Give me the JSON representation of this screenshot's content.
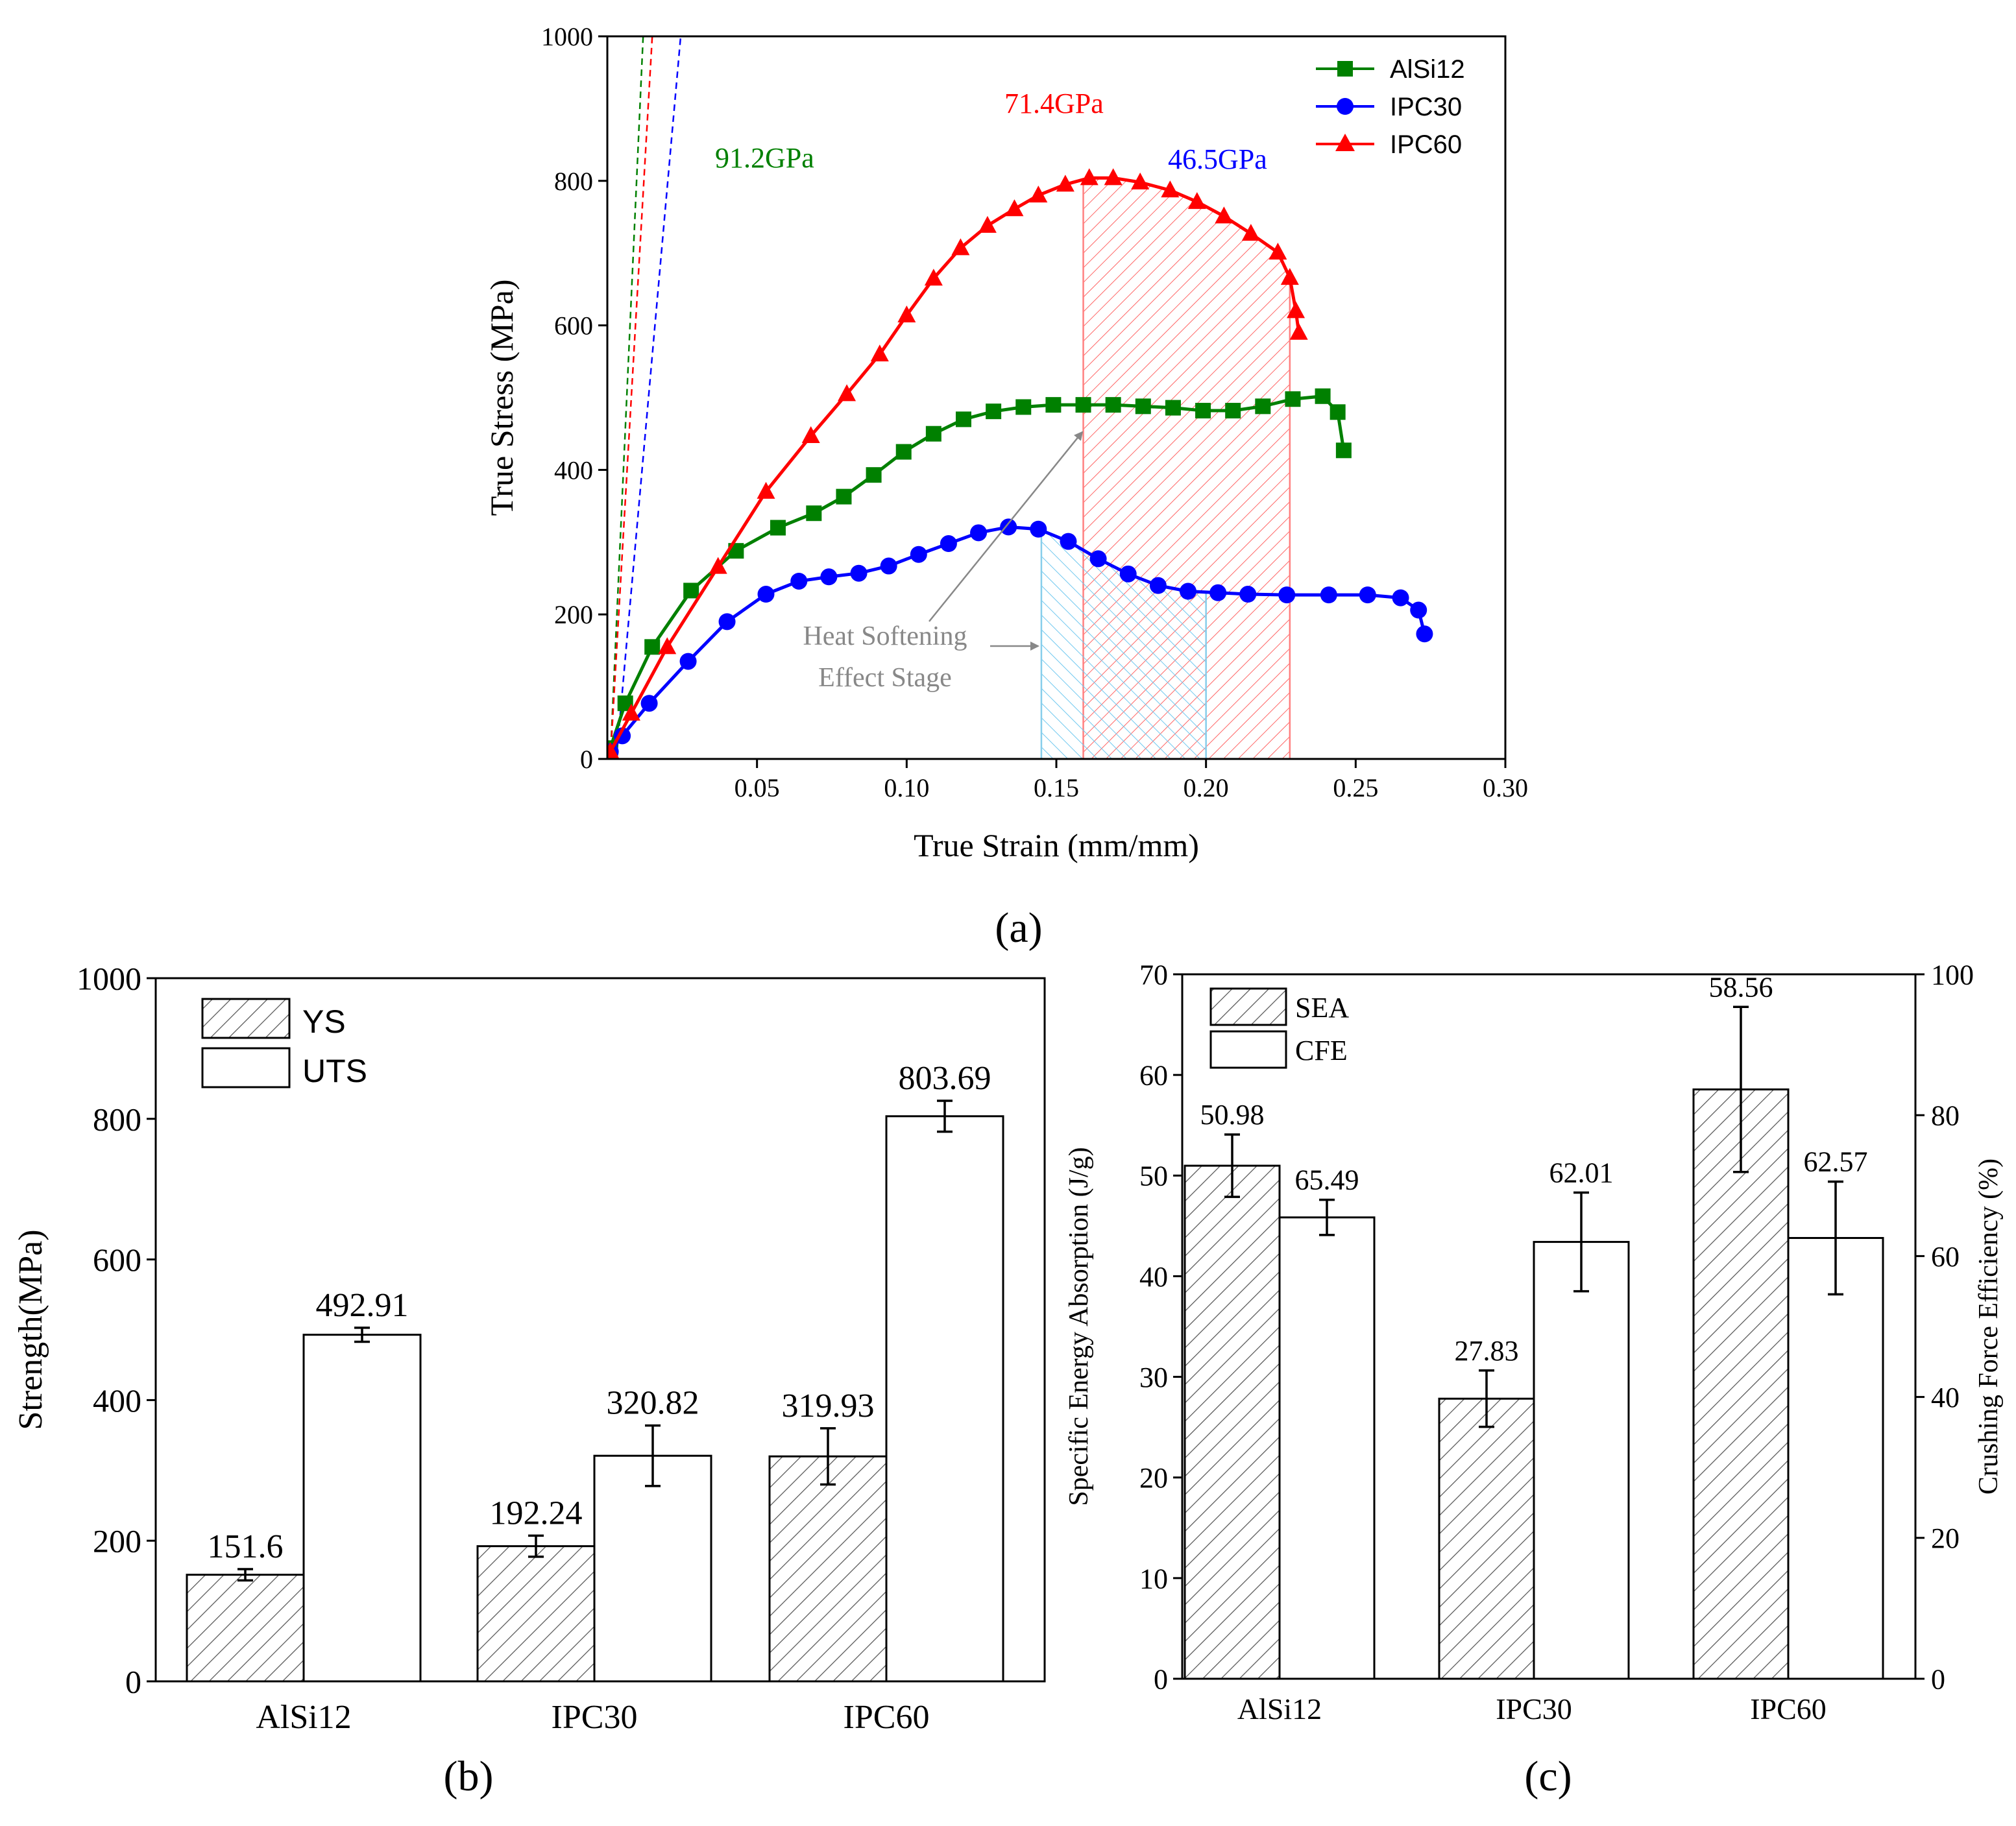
{
  "panel_labels": {
    "a": "(a)",
    "b": "(b)",
    "c": "(c)"
  },
  "chart_data": [
    {
      "id": "a",
      "type": "line",
      "xlabel": "True Strain (mm/mm)",
      "ylabel": "True Stress (MPa)",
      "xlim": [
        0,
        0.3
      ],
      "ylim": [
        0,
        1000
      ],
      "xticks": [
        0.05,
        0.1,
        0.15,
        0.2,
        0.25,
        0.3
      ],
      "xtick_labels": [
        "0.05",
        "0.10",
        "0.15",
        "0.20",
        "0.25",
        "0.30"
      ],
      "yticks": [
        0,
        200,
        400,
        600,
        800,
        1000
      ],
      "ytick_labels": [
        "0",
        "200",
        "400",
        "600",
        "800",
        "1000"
      ],
      "legend_position": "top-right",
      "series": [
        {
          "name": "AlSi12",
          "color": "#008000",
          "marker": "square",
          "x": [
            0.001,
            0.006,
            0.015,
            0.028,
            0.043,
            0.057,
            0.069,
            0.079,
            0.089,
            0.099,
            0.109,
            0.119,
            0.129,
            0.139,
            0.149,
            0.159,
            0.169,
            0.179,
            0.189,
            0.199,
            0.209,
            0.219,
            0.229,
            0.239,
            0.244,
            0.246
          ],
          "y": [
            15,
            77,
            155,
            233,
            288,
            320,
            340,
            363,
            393,
            425,
            450,
            470,
            481,
            487,
            490,
            490,
            490,
            488,
            486,
            482,
            482,
            488,
            498,
            502,
            480,
            427
          ]
        },
        {
          "name": "IPC30",
          "color": "#0000ff",
          "marker": "circle",
          "x": [
            0.001,
            0.005,
            0.014,
            0.027,
            0.04,
            0.053,
            0.064,
            0.074,
            0.084,
            0.094,
            0.104,
            0.114,
            0.124,
            0.134,
            0.144,
            0.154,
            0.164,
            0.174,
            0.184,
            0.194,
            0.204,
            0.214,
            0.227,
            0.241,
            0.254,
            0.265,
            0.271,
            0.273
          ],
          "y": [
            10,
            32,
            77,
            135,
            190,
            228,
            246,
            252,
            257,
            267,
            283,
            298,
            313,
            321,
            318,
            301,
            277,
            256,
            240,
            232,
            230,
            228,
            227,
            227,
            227,
            223,
            206,
            173
          ]
        },
        {
          "name": "IPC60",
          "color": "#ff0000",
          "marker": "triangle",
          "x": [
            0.001,
            0.008,
            0.02,
            0.037,
            0.053,
            0.068,
            0.08,
            0.091,
            0.1,
            0.109,
            0.118,
            0.127,
            0.136,
            0.144,
            0.153,
            0.161,
            0.169,
            0.178,
            0.188,
            0.197,
            0.206,
            0.215,
            0.224,
            0.228,
            0.23,
            0.231
          ],
          "y": [
            10,
            63,
            155,
            266,
            370,
            447,
            505,
            560,
            614,
            665,
            707,
            738,
            761,
            780,
            795,
            804,
            804,
            798,
            787,
            771,
            751,
            727,
            701,
            666,
            620,
            590
          ]
        }
      ],
      "moduli": [
        {
          "label": "91.2GPa",
          "color": "#008000"
        },
        {
          "label": "71.4GPa",
          "color": "#ff0000"
        },
        {
          "label": "46.5GPa",
          "color": "#0000ff"
        }
      ],
      "annotation": {
        "line1": "Heat Softening",
        "line2": "Effect Stage"
      },
      "shaded_regions": [
        {
          "series": "IPC60",
          "color": "#ff8080",
          "x_start": 0.159,
          "x_end": 0.228
        },
        {
          "series": "IPC30",
          "color": "#87ceeb",
          "x_start": 0.145,
          "x_end": 0.2
        }
      ]
    },
    {
      "id": "b",
      "type": "bar",
      "categories": [
        "AlSi12",
        "IPC30",
        "IPC60"
      ],
      "ylabel": "Strength(MPa)",
      "ylim": [
        0,
        1000
      ],
      "yticks": [
        0,
        200,
        400,
        600,
        800,
        1000
      ],
      "ytick_labels": [
        "0",
        "200",
        "400",
        "600",
        "800",
        "1000"
      ],
      "legend_position": "top-left",
      "series": [
        {
          "name": "YS",
          "fill": "hatched",
          "values": [
            151.6,
            192.24,
            319.93
          ],
          "value_labels": [
            "151.6",
            "192.24",
            "319.93"
          ],
          "errors": [
            8,
            15,
            40
          ]
        },
        {
          "name": "UTS",
          "fill": "open",
          "values": [
            492.91,
            320.82,
            803.69
          ],
          "value_labels": [
            "492.91",
            "320.82",
            "803.69"
          ],
          "errors": [
            10,
            43,
            22
          ]
        }
      ]
    },
    {
      "id": "c",
      "type": "bar",
      "categories": [
        "AlSi12",
        "IPC30",
        "IPC60"
      ],
      "ylabel": "Specific Energy Absorption (J/g)",
      "ylabel_right": "Crushing Force Efficiency (%)",
      "ylim": [
        0,
        70
      ],
      "ylim_right": [
        0,
        100
      ],
      "yticks": [
        0,
        10,
        20,
        30,
        40,
        50,
        60,
        70
      ],
      "ytick_labels": [
        "0",
        "10",
        "20",
        "30",
        "40",
        "50",
        "60",
        "70"
      ],
      "yticks_right": [
        0,
        20,
        40,
        60,
        80,
        100
      ],
      "ytick_labels_right": [
        "0",
        "20",
        "40",
        "60",
        "80",
        "100"
      ],
      "legend_position": "top-left",
      "series": [
        {
          "name": "SEA",
          "fill": "hatched",
          "axis": "left",
          "values": [
            50.98,
            27.83,
            58.56
          ],
          "value_labels": [
            "50.98",
            "27.83",
            "58.56"
          ],
          "errors": [
            3.1,
            2.8,
            8.2
          ]
        },
        {
          "name": "CFE",
          "fill": "open",
          "axis": "right",
          "values": [
            65.49,
            62.01,
            62.57
          ],
          "value_labels": [
            "65.49",
            "62.01",
            "62.57"
          ],
          "errors": [
            2.5,
            7.0,
            8.0
          ]
        }
      ]
    }
  ]
}
